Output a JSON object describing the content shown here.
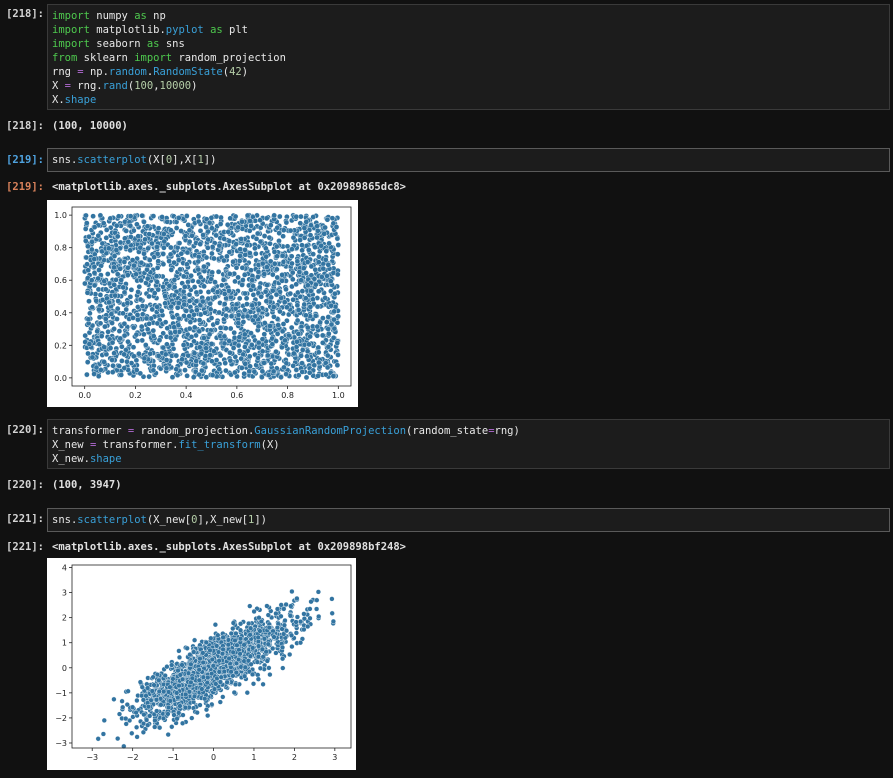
{
  "cells": [
    {
      "prompt": "[218]:",
      "code_lines": [
        [
          [
            "kw",
            "import"
          ],
          [
            "plain",
            " numpy "
          ],
          [
            "kw",
            "as"
          ],
          [
            "plain",
            " np"
          ]
        ],
        [
          [
            "kw",
            "import"
          ],
          [
            "plain",
            " matplotlib."
          ],
          [
            "attr",
            "pyplot"
          ],
          [
            "plain",
            " "
          ],
          [
            "kw",
            "as"
          ],
          [
            "plain",
            " plt"
          ]
        ],
        [
          [
            "kw",
            "import"
          ],
          [
            "plain",
            " seaborn "
          ],
          [
            "kw",
            "as"
          ],
          [
            "plain",
            " sns"
          ]
        ],
        [
          [
            "kw",
            "from"
          ],
          [
            "plain",
            " sklearn "
          ],
          [
            "kw",
            "import"
          ],
          [
            "plain",
            " random_projection"
          ]
        ],
        [
          [
            "plain",
            "rng "
          ],
          [
            "op",
            "="
          ],
          [
            "plain",
            " np."
          ],
          [
            "attr",
            "random"
          ],
          [
            "plain",
            "."
          ],
          [
            "attr",
            "RandomState"
          ],
          [
            "plain",
            "("
          ],
          [
            "num",
            "42"
          ],
          [
            "plain",
            ")"
          ]
        ],
        [
          [
            "plain",
            "X "
          ],
          [
            "op",
            "="
          ],
          [
            "plain",
            " rng."
          ],
          [
            "attr",
            "rand"
          ],
          [
            "plain",
            "("
          ],
          [
            "num",
            "100"
          ],
          [
            "plain",
            ","
          ],
          [
            "num",
            "10000"
          ],
          [
            "plain",
            ")"
          ]
        ],
        [
          [
            "plain",
            "X."
          ],
          [
            "attr",
            "shape"
          ]
        ]
      ],
      "output_prompt": "[218]:",
      "output_text": "(100, 10000)"
    },
    {
      "prompt": "[219]:",
      "code_lines": [
        [
          [
            "plain",
            "sns."
          ],
          [
            "attr",
            "scatterplot"
          ],
          [
            "plain",
            "(X["
          ],
          [
            "num",
            "0"
          ],
          [
            "plain",
            "],X["
          ],
          [
            "num",
            "1"
          ],
          [
            "plain",
            "])"
          ]
        ]
      ],
      "output_prompt": "[219]:",
      "output_text": "<matplotlib.axes._subplots.AxesSubplot at 0x20989865dc8>"
    },
    {
      "prompt": "[220]:",
      "code_lines": [
        [
          [
            "plain",
            "transformer "
          ],
          [
            "op",
            "="
          ],
          [
            "plain",
            " random_projection."
          ],
          [
            "attr",
            "GaussianRandomProjection"
          ],
          [
            "plain",
            "(random_state"
          ],
          [
            "op",
            "="
          ],
          [
            "plain",
            "rng)"
          ]
        ],
        [
          [
            "plain",
            "X_new "
          ],
          [
            "op",
            "="
          ],
          [
            "plain",
            " transformer."
          ],
          [
            "attr",
            "fit_transform"
          ],
          [
            "plain",
            "(X)"
          ]
        ],
        [
          [
            "plain",
            "X_new."
          ],
          [
            "attr",
            "shape"
          ]
        ]
      ],
      "output_prompt": "[220]:",
      "output_text": "(100, 3947)"
    },
    {
      "prompt": "[221]:",
      "code_lines": [
        [
          [
            "plain",
            "sns."
          ],
          [
            "attr",
            "scatterplot"
          ],
          [
            "plain",
            "(X_new["
          ],
          [
            "num",
            "0"
          ],
          [
            "plain",
            "],X_new["
          ],
          [
            "num",
            "1"
          ],
          [
            "plain",
            "])"
          ]
        ]
      ],
      "output_prompt": "[221]:",
      "output_text": "<matplotlib.axes._subplots.AxesSubplot at 0x209898bf248>"
    }
  ],
  "colors": {
    "point_fill": "#3274a1",
    "point_edge": "#ffffff",
    "background": "#111111"
  },
  "chart_data": [
    {
      "type": "scatter",
      "title": "",
      "xlabel": "",
      "ylabel": "",
      "xlim": [
        -0.05,
        1.05
      ],
      "ylim": [
        -0.05,
        1.05
      ],
      "xticks": [
        "0.0",
        "0.2",
        "0.4",
        "0.6",
        "0.8",
        "1.0"
      ],
      "yticks": [
        "0.0",
        "0.2",
        "0.4",
        "0.6",
        "0.8",
        "1.0"
      ],
      "n_points": 10000,
      "distribution": "uniform on [0,1] x [0,1]",
      "grid": false
    },
    {
      "type": "scatter",
      "title": "",
      "xlabel": "",
      "ylabel": "",
      "xlim": [
        -3.5,
        3.4
      ],
      "ylim": [
        -3.2,
        4.1
      ],
      "xticks": [
        "-3",
        "-2",
        "-1",
        "0",
        "1",
        "2",
        "3"
      ],
      "yticks": [
        "-3",
        "-2",
        "-1",
        "0",
        "1",
        "2",
        "3",
        "4"
      ],
      "n_points": 3947,
      "distribution": "correlated, approximately y = 0.9x + noise",
      "grid": false
    }
  ]
}
